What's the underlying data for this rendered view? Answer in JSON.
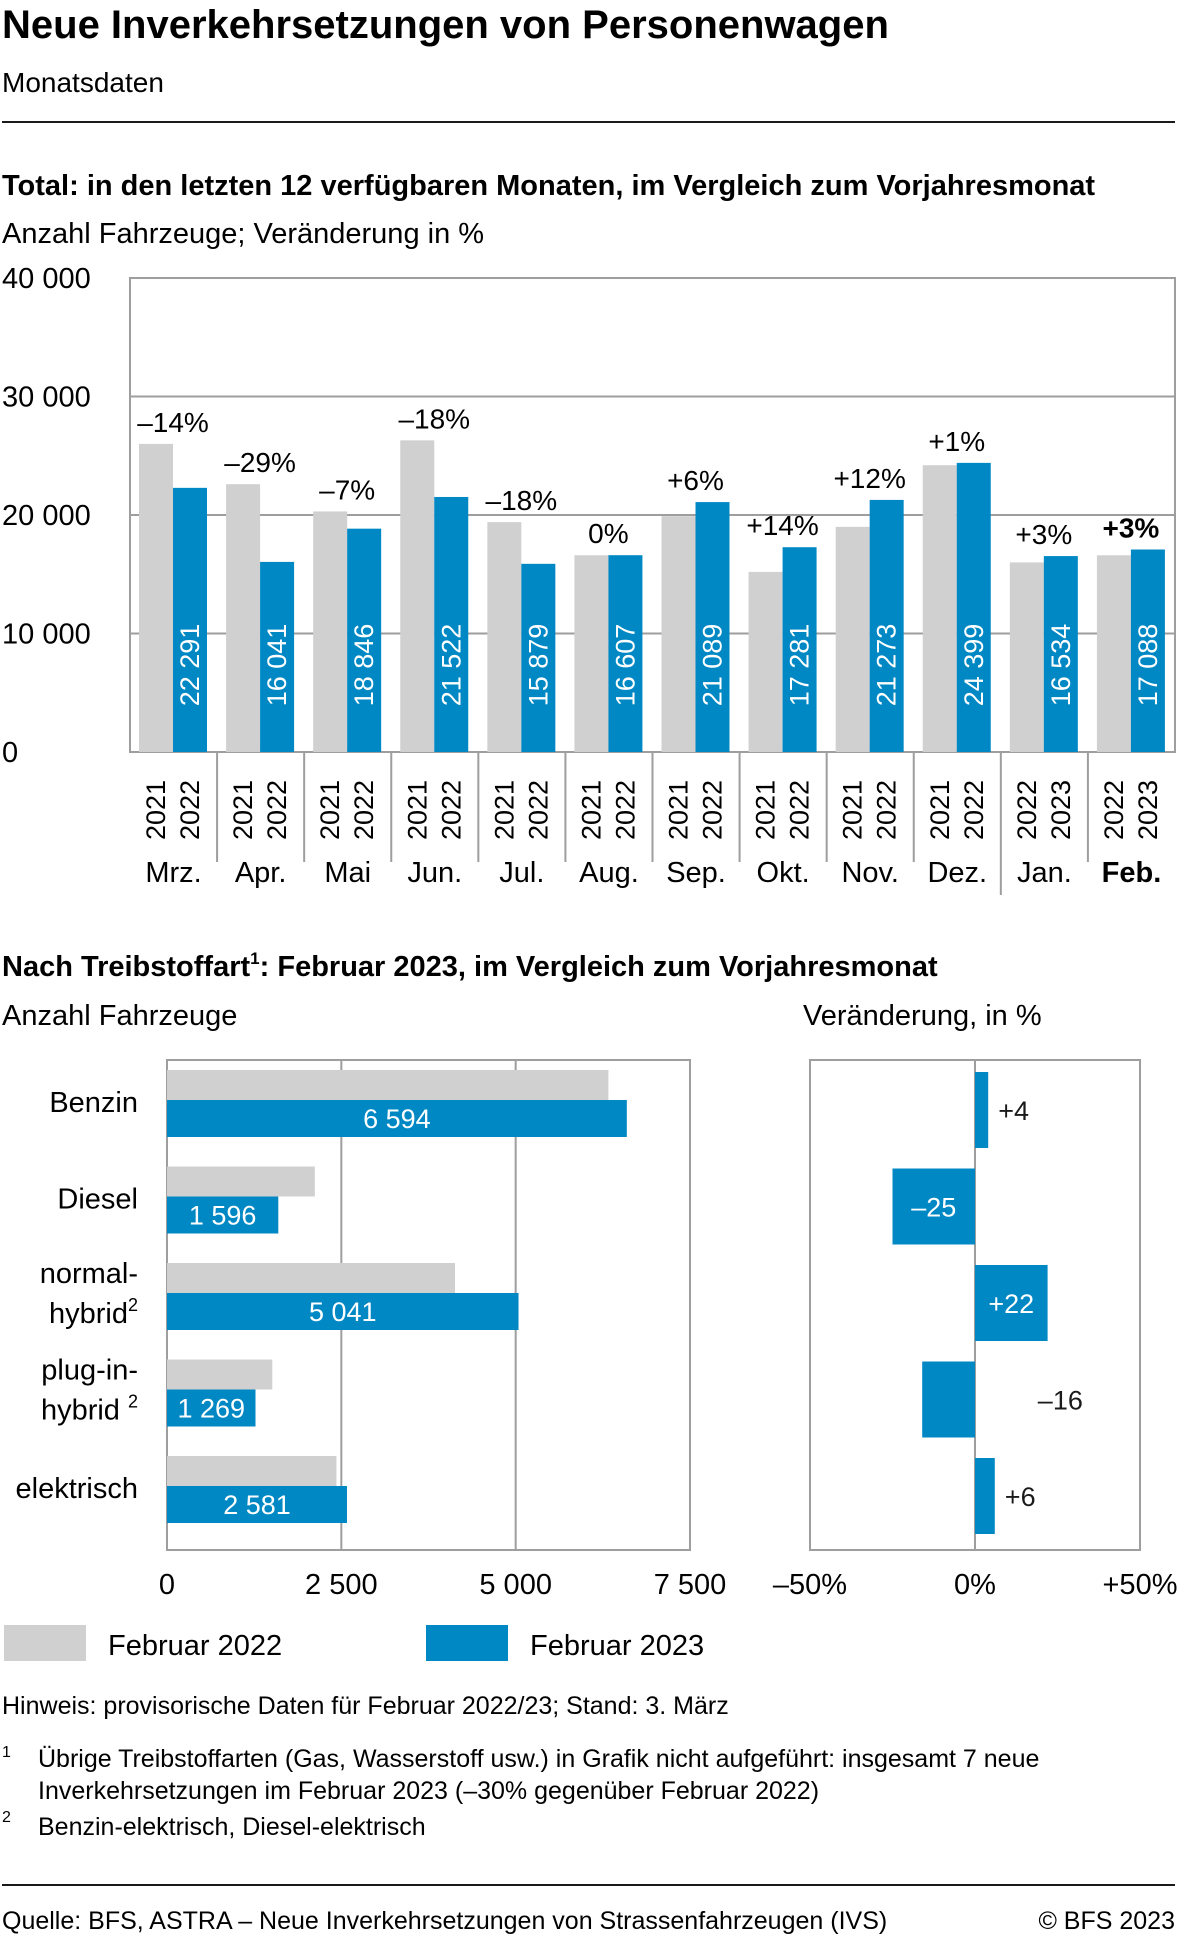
{
  "header": {
    "title": "Neue Inverkehrsetzungen von Personenwagen",
    "subtitle": "Monatsdaten"
  },
  "colors": {
    "prev": "#d0d0d0",
    "curr": "#0088c4",
    "grid": "#9e9e9e",
    "text": "#1a1a1a"
  },
  "chart_data": [
    {
      "type": "bar",
      "title": "Total: in den letzten 12 verfügbaren Monaten, im Vergleich zum Vorjahresmonat",
      "subtitle": "Anzahl Fahrzeuge; Veränderung in %",
      "ylim": [
        0,
        40000
      ],
      "yticks": [
        0,
        10000,
        20000,
        30000,
        40000
      ],
      "ytick_labels": [
        "0",
        "10 000",
        "20 000",
        "30 000",
        "40 000"
      ],
      "grid": true,
      "categories": [
        {
          "month": "Mrz.",
          "prev_year": "2021",
          "curr_year": "2022",
          "prev": 26000,
          "curr": 22291,
          "curr_label": "22 291",
          "change": "–14%",
          "bold": false
        },
        {
          "month": "Apr.",
          "prev_year": "2021",
          "curr_year": "2022",
          "prev": 22600,
          "curr": 16041,
          "curr_label": "16 041",
          "change": "–29%",
          "bold": false
        },
        {
          "month": "Mai",
          "prev_year": "2021",
          "curr_year": "2022",
          "prev": 20300,
          "curr": 18846,
          "curr_label": "18 846",
          "change": "–7%",
          "bold": false
        },
        {
          "month": "Jun.",
          "prev_year": "2021",
          "curr_year": "2022",
          "prev": 26300,
          "curr": 21522,
          "curr_label": "21 522",
          "change": "–18%",
          "bold": false
        },
        {
          "month": "Jul.",
          "prev_year": "2021",
          "curr_year": "2022",
          "prev": 19400,
          "curr": 15879,
          "curr_label": "15 879",
          "change": "–18%",
          "bold": false
        },
        {
          "month": "Aug.",
          "prev_year": "2021",
          "curr_year": "2022",
          "prev": 16600,
          "curr": 16607,
          "curr_label": "16 607",
          "change": "0%",
          "bold": false
        },
        {
          "month": "Sep.",
          "prev_year": "2021",
          "curr_year": "2022",
          "prev": 19900,
          "curr": 21089,
          "curr_label": "21 089",
          "change": "+6%",
          "bold": false
        },
        {
          "month": "Okt.",
          "prev_year": "2021",
          "curr_year": "2022",
          "prev": 15200,
          "curr": 17281,
          "curr_label": "17 281",
          "change": "+14%",
          "bold": false
        },
        {
          "month": "Nov.",
          "prev_year": "2021",
          "curr_year": "2022",
          "prev": 19000,
          "curr": 21273,
          "curr_label": "21 273",
          "change": "+12%",
          "bold": false
        },
        {
          "month": "Dez.",
          "prev_year": "2021",
          "curr_year": "2022",
          "prev": 24200,
          "curr": 24399,
          "curr_label": "24 399",
          "change": "+1%",
          "bold": false
        },
        {
          "month": "Jan.",
          "prev_year": "2022",
          "curr_year": "2023",
          "prev": 16000,
          "curr": 16534,
          "curr_label": "16 534",
          "change": "+3%",
          "bold": false
        },
        {
          "month": "Feb.",
          "prev_year": "2022",
          "curr_year": "2023",
          "prev": 16600,
          "curr": 17088,
          "curr_label": "17 088",
          "change": "+3%",
          "bold": true
        }
      ]
    },
    {
      "type": "bar",
      "orientation": "horizontal",
      "title_main": "Nach Treibstoffart",
      "title_sup": "1",
      "title_rest": ": Februar 2023, im Vergleich zum Vorjahresmonat",
      "left_subtitle": "Anzahl Fahrzeuge",
      "right_subtitle": "Veränderung, in %",
      "xlim": [
        0,
        7500
      ],
      "xticks": [
        0,
        2500,
        5000,
        7500
      ],
      "xtick_labels": [
        "0",
        "2 500",
        "5 000",
        "7 500"
      ],
      "change_xlim": [
        -50,
        50
      ],
      "change_xticks": [
        -50,
        0,
        50
      ],
      "change_xtick_labels": [
        "–50%",
        "0%",
        "+50%"
      ],
      "grid": true,
      "items": [
        {
          "label_lines": [
            "Benzin"
          ],
          "sup": "",
          "prev": 6330,
          "curr": 6594,
          "curr_label": "6 594",
          "change": 4,
          "change_label": "+4"
        },
        {
          "label_lines": [
            "Diesel"
          ],
          "sup": "",
          "prev": 2120,
          "curr": 1596,
          "curr_label": "1 596",
          "change": -25,
          "change_label": "–25"
        },
        {
          "label_lines": [
            "normal-",
            "hybrid"
          ],
          "sup": "2",
          "prev": 4130,
          "curr": 5041,
          "curr_label": "5 041",
          "change": 22,
          "change_label": "+22"
        },
        {
          "label_lines": [
            "plug-in-",
            "hybrid "
          ],
          "sup": "2",
          "prev": 1510,
          "curr": 1269,
          "curr_label": "1 269",
          "change": -16,
          "change_label": "–16"
        },
        {
          "label_lines": [
            "elektrisch"
          ],
          "sup": "",
          "prev": 2430,
          "curr": 2581,
          "curr_label": "2 581",
          "change": 6,
          "change_label": "+6"
        }
      ]
    }
  ],
  "legend": {
    "prev_label": "Februar 2022",
    "curr_label": "Februar 2023"
  },
  "notes": {
    "hinweis": "Hinweis: provisorische Daten für Februar 2022/23; Stand: 3. März",
    "footnotes": [
      {
        "mark": "1",
        "lines": [
          "Übrige Treibstoffarten (Gas, Wasserstoff usw.) in Grafik nicht aufgeführt: insgesamt 7 neue",
          "Inverkehrsetzungen im Februar 2023 (–30% gegenüber Februar 2022)"
        ]
      },
      {
        "mark": "2",
        "lines": [
          "Benzin-elektrisch, Diesel-elektrisch"
        ]
      }
    ]
  },
  "footer": {
    "source": "Quelle: BFS, ASTRA – Neue Inverkehrsetzungen von Strassenfahrzeugen (IVS)",
    "copyright": "© BFS 2023"
  }
}
